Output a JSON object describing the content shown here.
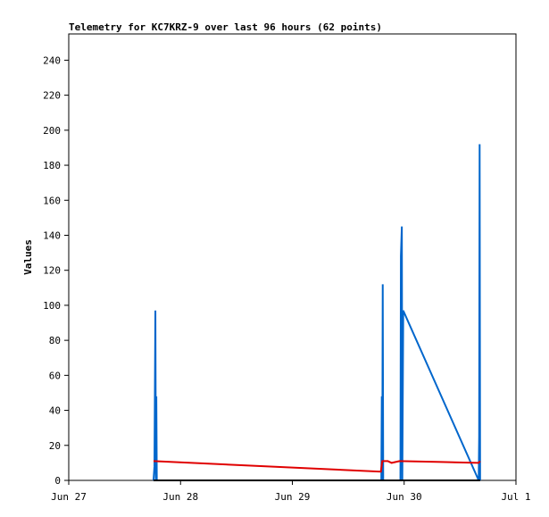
{
  "chart_data": {
    "type": "line",
    "title": "Telemetry for KC7KRZ-9 over last 96 hours (62 points)",
    "y_label": "Values",
    "xlim": [
      0,
      96
    ],
    "xticks": [
      {
        "value": 0,
        "label": "Jun 27"
      },
      {
        "value": 24,
        "label": "Jun 28"
      },
      {
        "value": 48,
        "label": "Jun 29"
      },
      {
        "value": 72,
        "label": "Jun 30"
      },
      {
        "value": 96,
        "label": "Jul 1"
      }
    ],
    "ylim": [
      0,
      255
    ],
    "yticks": [
      0,
      20,
      40,
      60,
      80,
      100,
      120,
      140,
      160,
      180,
      200,
      220,
      240
    ],
    "series": [
      {
        "color": "#0066cc",
        "x": [
          18.2,
          18.4,
          18.6,
          18.7,
          18.8,
          18.9,
          67.1,
          67.2,
          67.3,
          67.4,
          67.5,
          71.2,
          71.3,
          71.5,
          71.6,
          71.8,
          88.0,
          88.1,
          88.2,
          88.3
        ],
        "values": [
          0,
          8,
          97,
          0,
          48,
          0,
          0,
          48,
          0,
          112,
          0,
          0,
          128,
          145,
          0,
          97,
          0,
          25,
          192,
          0
        ]
      },
      {
        "color": "#e00000",
        "x": [
          18.2,
          67.0,
          67.3,
          68.5,
          69.3,
          71.0,
          80.0,
          88.0,
          88.3
        ],
        "values": [
          11,
          5,
          11,
          11,
          10,
          11,
          10.5,
          10,
          11
        ]
      },
      {
        "color": "#000000",
        "x": [
          18.2,
          88.3
        ],
        "values": [
          0,
          0
        ]
      }
    ]
  }
}
